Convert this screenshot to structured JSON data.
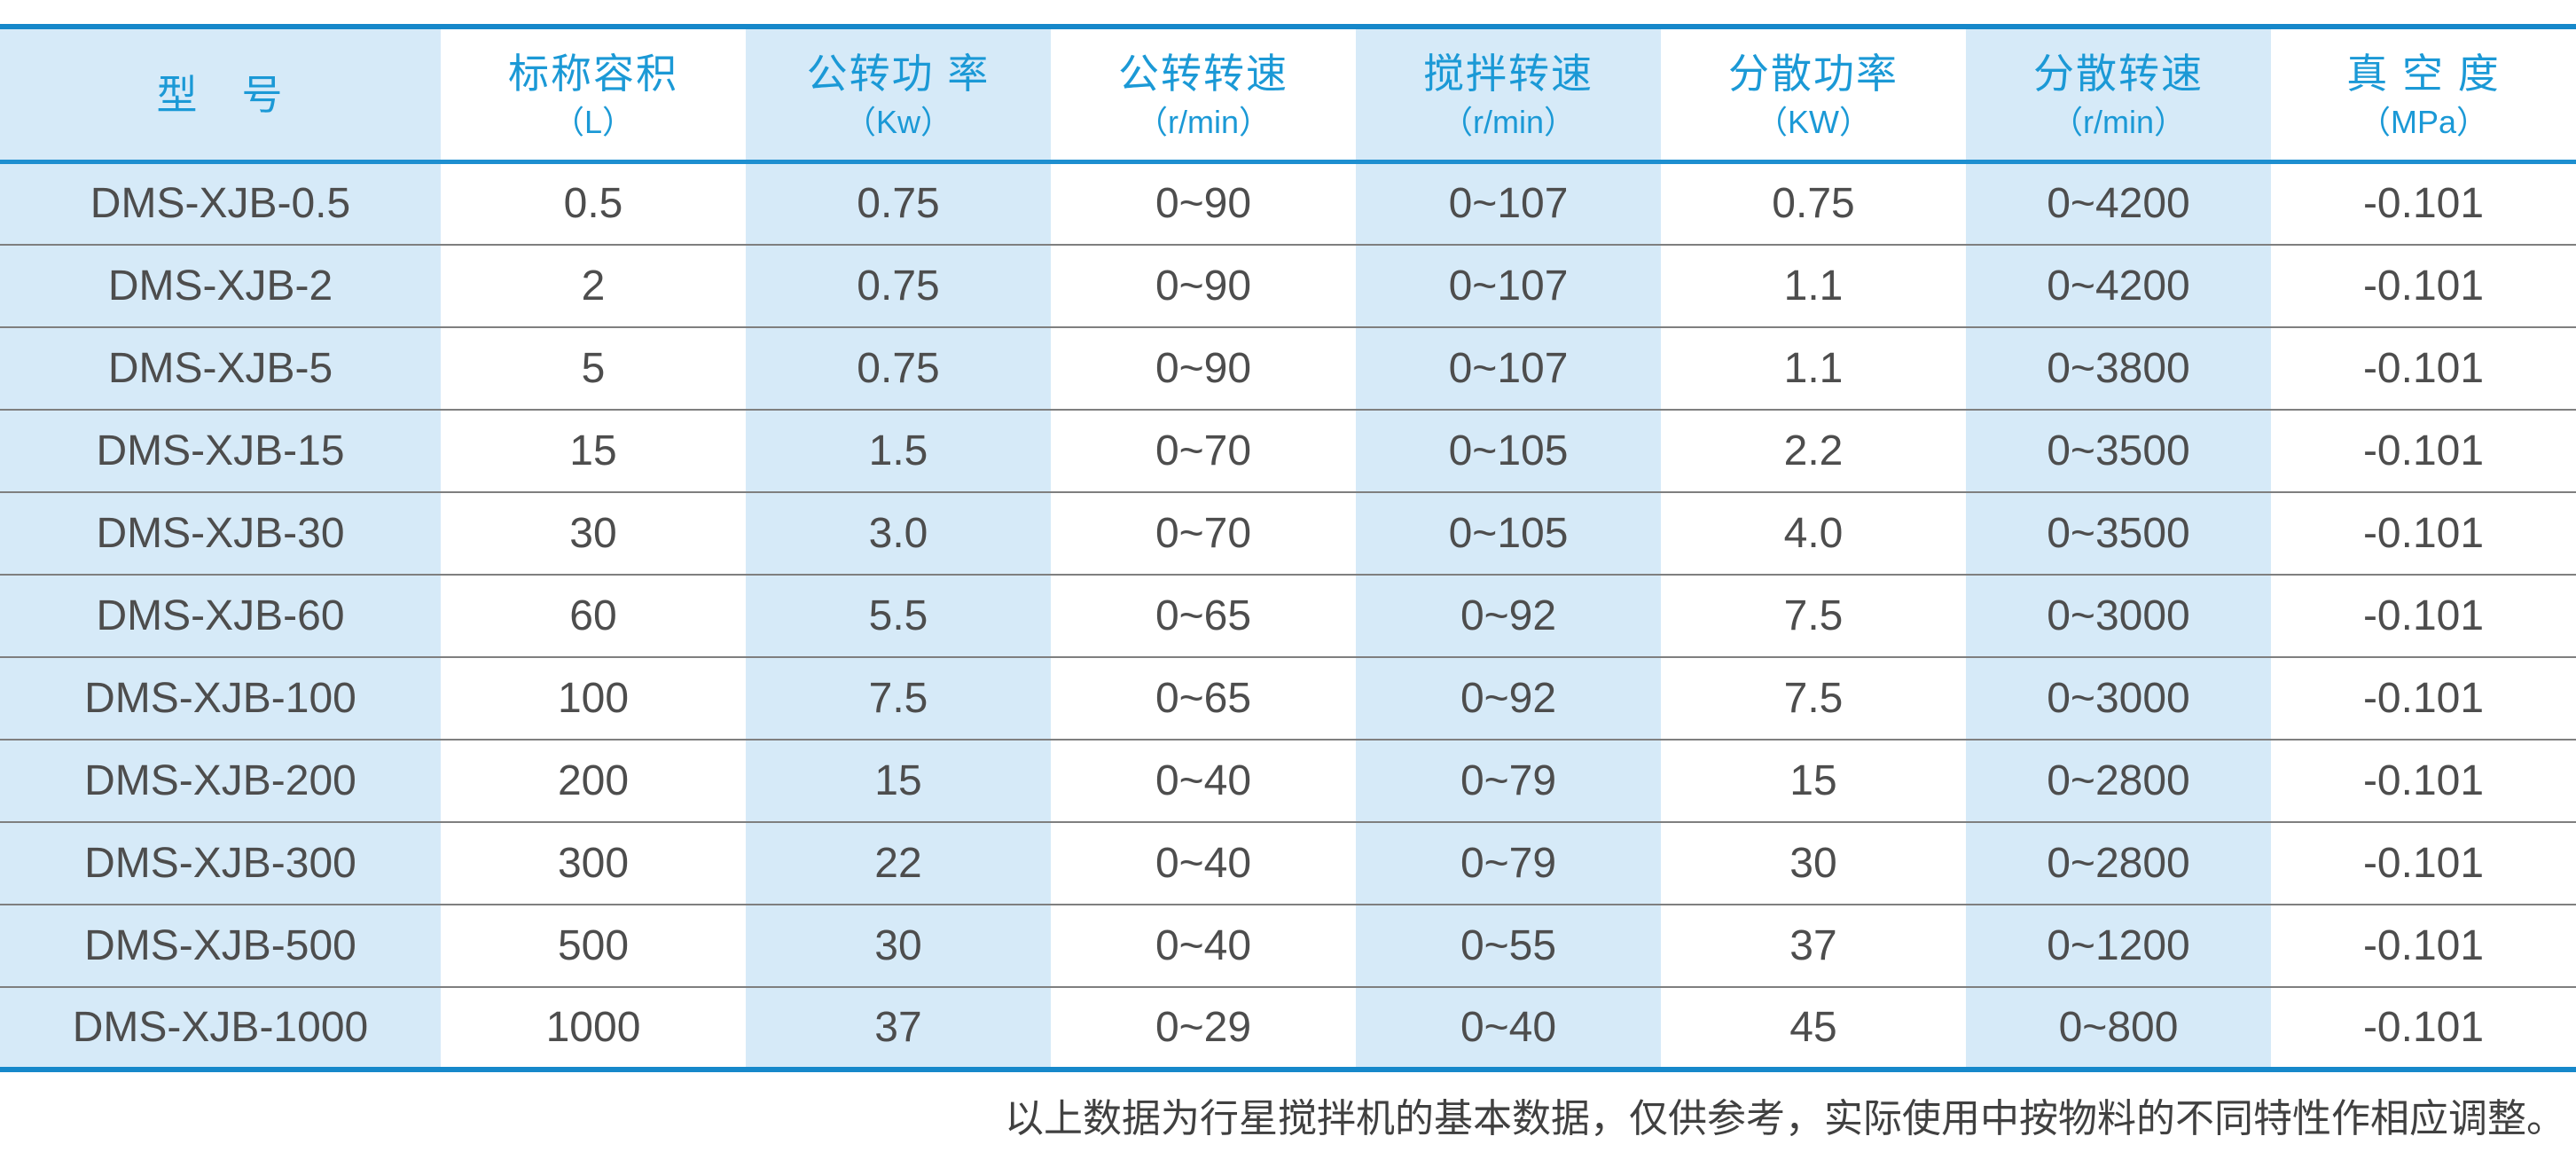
{
  "table": {
    "columns": [
      {
        "title": "型　号",
        "unit": ""
      },
      {
        "title": "标称容积",
        "unit": "（L）"
      },
      {
        "title": "公转功 率",
        "unit": "（Kw）"
      },
      {
        "title": "公转转速",
        "unit": "（r/min）"
      },
      {
        "title": "搅拌转速",
        "unit": "（r/min）"
      },
      {
        "title": "分散功率",
        "unit": "（KW）"
      },
      {
        "title": "分散转速",
        "unit": "（r/min）"
      },
      {
        "title": "真 空 度",
        "unit": "（MPa）"
      }
    ],
    "rows": [
      [
        "DMS-XJB-0.5",
        "0.5",
        "0.75",
        "0~90",
        "0~107",
        "0.75",
        "0~4200",
        "-0.101"
      ],
      [
        "DMS-XJB-2",
        "2",
        "0.75",
        "0~90",
        "0~107",
        "1.1",
        "0~4200",
        "-0.101"
      ],
      [
        "DMS-XJB-5",
        "5",
        "0.75",
        "0~90",
        "0~107",
        "1.1",
        "0~3800",
        "-0.101"
      ],
      [
        "DMS-XJB-15",
        "15",
        "1.5",
        "0~70",
        "0~105",
        "2.2",
        "0~3500",
        "-0.101"
      ],
      [
        "DMS-XJB-30",
        "30",
        "3.0",
        "0~70",
        "0~105",
        "4.0",
        "0~3500",
        "-0.101"
      ],
      [
        "DMS-XJB-60",
        "60",
        "5.5",
        "0~65",
        "0~92",
        "7.5",
        "0~3000",
        "-0.101"
      ],
      [
        "DMS-XJB-100",
        "100",
        "7.5",
        "0~65",
        "0~92",
        "7.5",
        "0~3000",
        "-0.101"
      ],
      [
        "DMS-XJB-200",
        "200",
        "15",
        "0~40",
        "0~79",
        "15",
        "0~2800",
        "-0.101"
      ],
      [
        "DMS-XJB-300",
        "300",
        "22",
        "0~40",
        "0~79",
        "30",
        "0~2800",
        "-0.101"
      ],
      [
        "DMS-XJB-500",
        "500",
        "30",
        "0~40",
        "0~55",
        "37",
        "0~1200",
        "-0.101"
      ],
      [
        "DMS-XJB-1000",
        "1000",
        "37",
        "0~29",
        "0~40",
        "45",
        "0~800",
        "-0.101"
      ]
    ]
  },
  "footer": {
    "note": "以上数据为行星搅拌机的基本数据，仅供参考，实际使用中按物料的不同特性作相应调整。"
  },
  "colors": {
    "accent_blue_border": "#1688ca",
    "header_separator_blue": "#1e8fd0",
    "header_text_blue": "#1b99d6",
    "shaded_column_bg": "#d6eaf8",
    "data_text": "#4d4d4d",
    "row_separator_gray": "#7f7f7f",
    "footer_text": "#404040"
  }
}
